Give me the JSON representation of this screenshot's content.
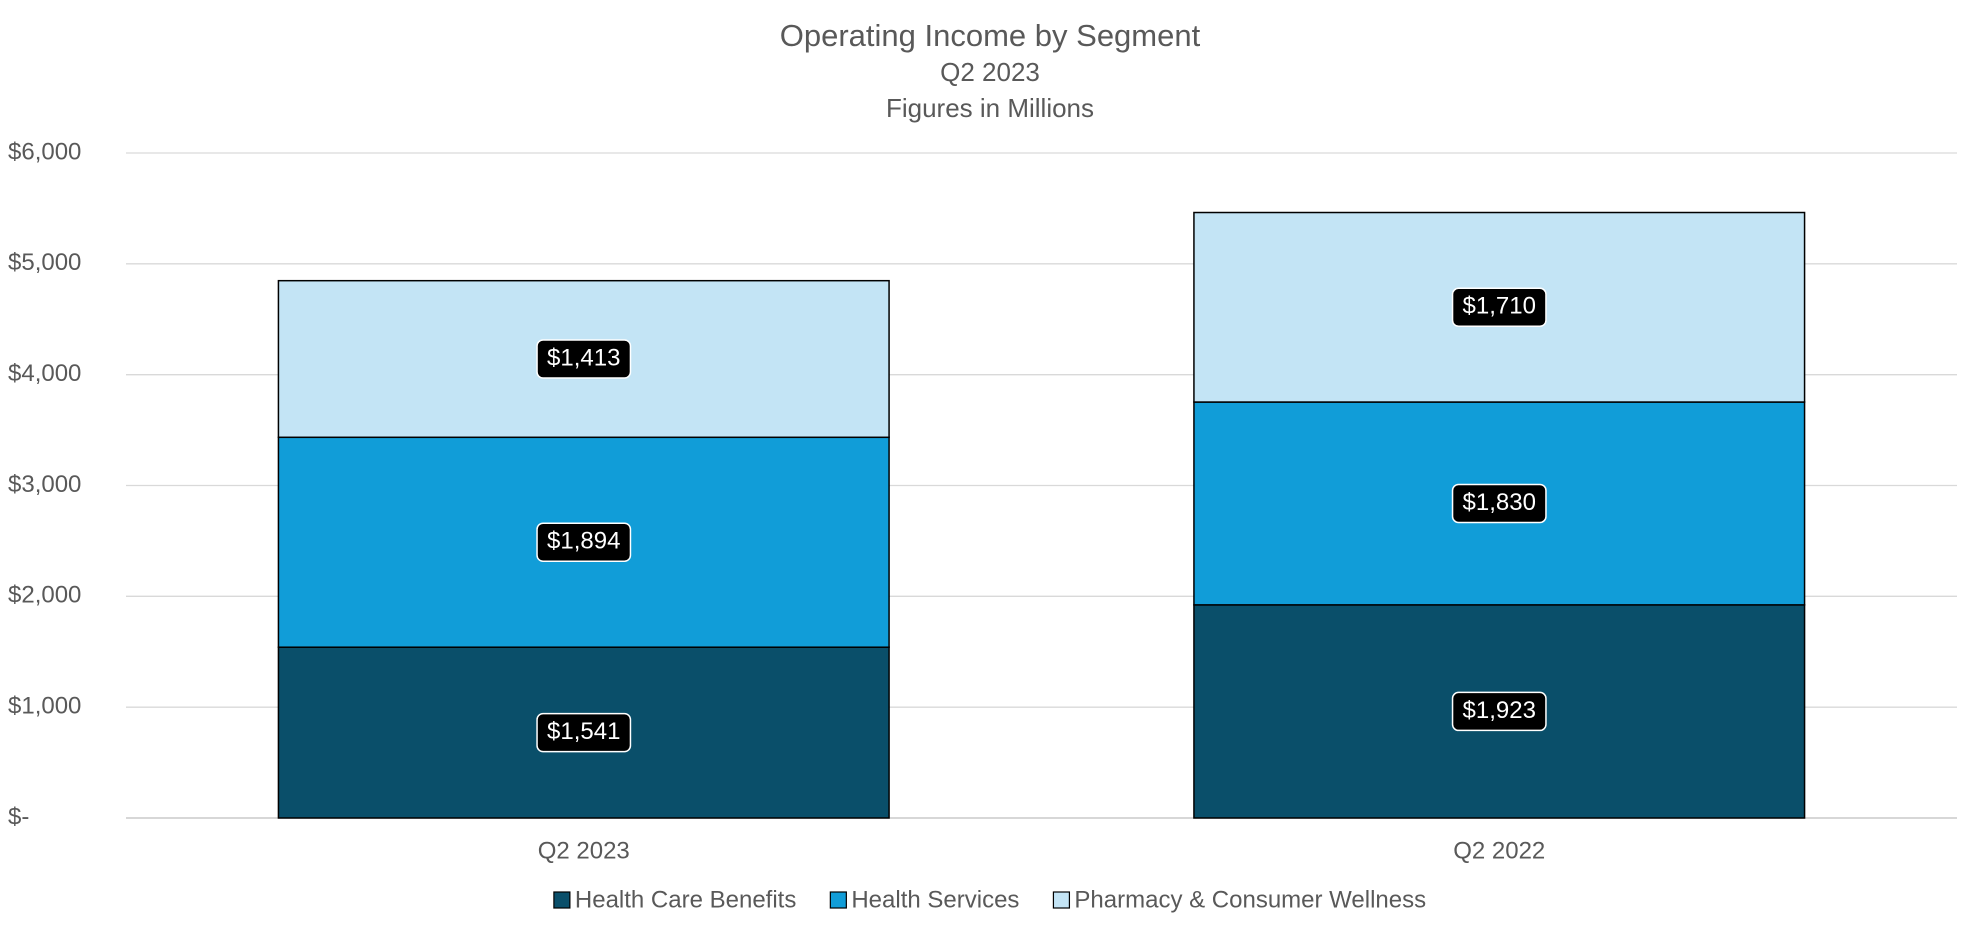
{
  "chart_data": {
    "type": "stacked_bar",
    "title": "Operating Income by Segment",
    "subtitle": [
      "Q2 2023",
      "Figures in Millions"
    ],
    "categories": [
      "Q2 2023",
      "Q2 2022"
    ],
    "series": [
      {
        "name": "Health Care Benefits",
        "color": "#0a4f6a",
        "values": [
          1541,
          1923
        ],
        "value_labels": [
          "$1,541",
          "$1,923"
        ]
      },
      {
        "name": "Health Services",
        "color": "#119dd8",
        "values": [
          1894,
          1830
        ],
        "value_labels": [
          "$1,894",
          "$1,830"
        ]
      },
      {
        "name": "Pharmacy & Consumer Wellness",
        "color": "#c3e4f5",
        "values": [
          1413,
          1710
        ],
        "value_labels": [
          "$1,413",
          "$1,710"
        ]
      }
    ],
    "ylim": [
      0,
      6000
    ],
    "yticks": [
      {
        "value": 0,
        "label": "$-"
      },
      {
        "value": 1000,
        "label": "$1,000"
      },
      {
        "value": 2000,
        "label": "$2,000"
      },
      {
        "value": 3000,
        "label": "$3,000"
      },
      {
        "value": 4000,
        "label": "$4,000"
      },
      {
        "value": 5000,
        "label": "$5,000"
      },
      {
        "value": 6000,
        "label": "$6,000"
      }
    ],
    "grid": true,
    "legend": "bottom"
  }
}
